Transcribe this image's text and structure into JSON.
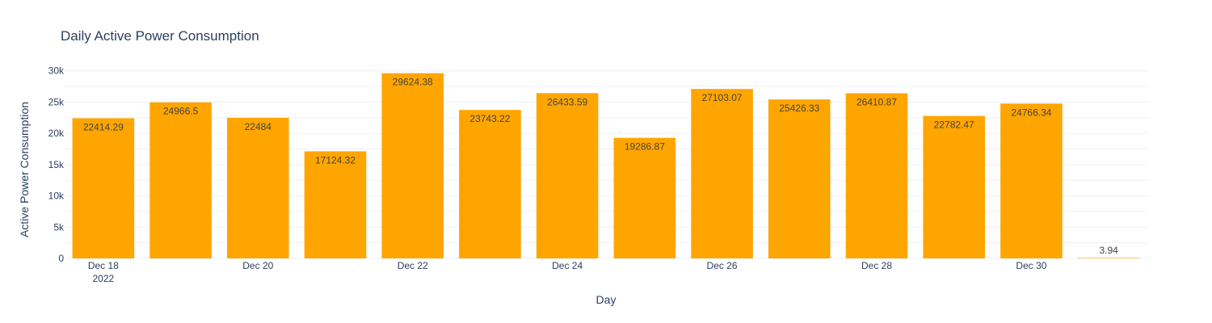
{
  "chart_data": {
    "type": "bar",
    "title": "Daily Active Power Consumption",
    "xlabel": "Day",
    "ylabel": "Active Power Consumption",
    "categories": [
      "2022-12-18",
      "2022-12-19",
      "2022-12-20",
      "2022-12-21",
      "2022-12-22",
      "2022-12-23",
      "2022-12-24",
      "2022-12-25",
      "2022-12-26",
      "2022-12-27",
      "2022-12-28",
      "2022-12-29",
      "2022-12-30",
      "2022-12-31"
    ],
    "values": [
      22414.29,
      24966.5,
      22484,
      17124.32,
      29624.38,
      23743.22,
      26433.59,
      19286.87,
      27103.07,
      25426.33,
      26410.87,
      22782.47,
      24766.34,
      3.94
    ],
    "value_labels": [
      "22414.29",
      "24966.5",
      "22484",
      "17124.32",
      "29624.38",
      "23743.22",
      "26433.59",
      "19286.87",
      "27103.07",
      "25426.33",
      "26410.87",
      "22782.47",
      "24766.34",
      "3.94"
    ],
    "ylim": [
      0,
      31000
    ],
    "y_ticks": [
      0,
      5000,
      10000,
      15000,
      20000,
      25000,
      30000
    ],
    "y_tick_labels": [
      "0",
      "5k",
      "10k",
      "15k",
      "20k",
      "25k",
      "30k"
    ],
    "x_ticks": [
      {
        "category": "2022-12-18",
        "label": "Dec 18",
        "sublabel": "2022"
      },
      {
        "category": "2022-12-20",
        "label": "Dec 20"
      },
      {
        "category": "2022-12-22",
        "label": "Dec 22"
      },
      {
        "category": "2022-12-24",
        "label": "Dec 24"
      },
      {
        "category": "2022-12-26",
        "label": "Dec 26"
      },
      {
        "category": "2022-12-28",
        "label": "Dec 28"
      },
      {
        "category": "2022-12-30",
        "label": "Dec 30"
      }
    ],
    "bar_color": "#ffa500",
    "grid": true,
    "legend": "none"
  }
}
